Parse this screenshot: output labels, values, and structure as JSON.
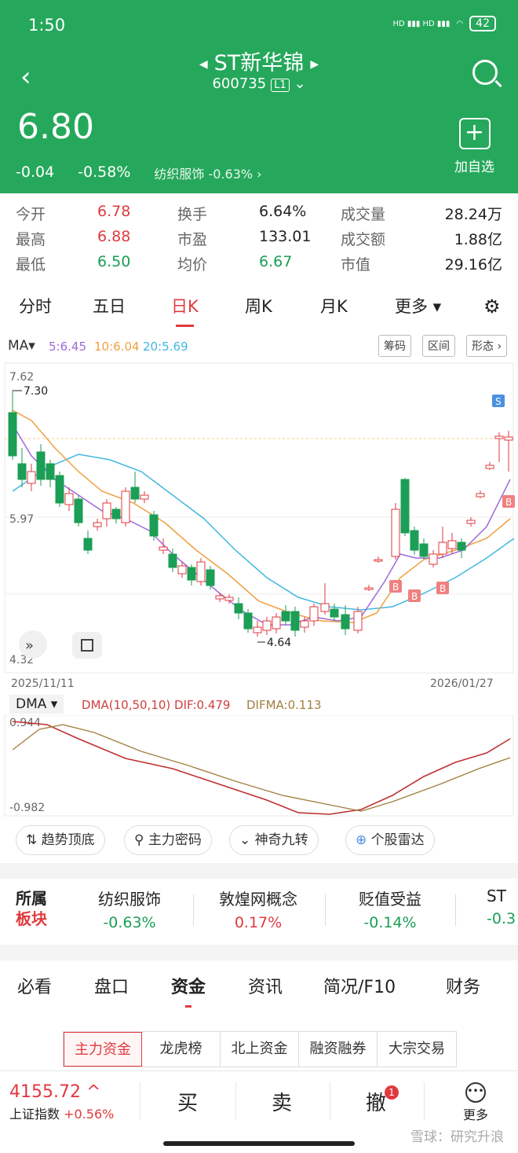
{
  "status_bar": {
    "time": "1:50",
    "network": "HD ▮▮▮ HD ▮▮▮",
    "battery": "42"
  },
  "header": {
    "stock_name": "ST新华锦",
    "stock_code": "600735",
    "level": "L1",
    "price": "6.80",
    "change": "-0.04",
    "change_pct": "-0.58%",
    "industry": "纺织服饰 -0.63% ›",
    "add_watch": "加自选"
  },
  "quote": {
    "rows": [
      [
        {
          "k": "今开",
          "v": "6.78"
        },
        {
          "k": "换手",
          "v": "6.64%"
        },
        {
          "k": "成交量",
          "v": "28.24万"
        }
      ],
      [
        {
          "k": "最高",
          "v": "6.88"
        },
        {
          "k": "市盈",
          "v": "133.01"
        },
        {
          "k": "成交额",
          "v": "1.88亿"
        }
      ],
      [
        {
          "k": "最低",
          "v": "6.50"
        },
        {
          "k": "均价",
          "v": "6.67"
        },
        {
          "k": "市值",
          "v": "29.16亿"
        }
      ]
    ]
  },
  "chart_tabs": [
    "分时",
    "五日",
    "日K",
    "周K",
    "月K",
    "更多 ▾"
  ],
  "indicator_bar": {
    "ma_label": "MA▾",
    "ma5": "5:6.45",
    "ma10": "10:6.04",
    "ma20": "20:5.69",
    "buttons": [
      "筹码",
      "区间",
      "形态 ›"
    ]
  },
  "kline": {
    "y_top": "7.62",
    "y_mid": "5.97",
    "y_bottom": "4.32",
    "high_label": "7.30",
    "low_label": "4.64",
    "date_start": "2025/11/11",
    "date_end": "2026/01/27",
    "sell_marker": "S",
    "buy_marker": "B"
  },
  "dma": {
    "label": "DMA ▾",
    "params": "DMA(10,50,10) DIF:0.479",
    "difma": "DIFMA:0.113",
    "y_top": "0.944",
    "y_bottom": "-0.982"
  },
  "tools": [
    "趋势顶底",
    "主力密码",
    "神奇九转",
    "个股雷达"
  ],
  "sector": {
    "label1": "所属",
    "label2": "板块",
    "items": [
      {
        "name": "纺织服饰",
        "pct": "-0.63%"
      },
      {
        "name": "敦煌网概念",
        "pct": "0.17%"
      },
      {
        "name": "贬值受益",
        "pct": "-0.14%"
      },
      {
        "name": "ST",
        "pct": "-0.3"
      }
    ]
  },
  "info_tabs": [
    "必看",
    "盘口",
    "资金",
    "资讯",
    "简况/F10",
    "财务"
  ],
  "fund_tabs": [
    "主力资金",
    "龙虎榜",
    "北上资金",
    "融资融券",
    "大宗交易"
  ],
  "bottom_bar": {
    "index_value": "4155.72 ^",
    "index_name": "上证指数",
    "index_chg": "+0.56%",
    "buy": "买",
    "sell": "卖",
    "cancel": "撤",
    "cancel_badge": "1",
    "more": "更多"
  },
  "watermark": "雪球：研究升浪",
  "colors": {
    "up": "#e03a3e",
    "down": "#1b9e55",
    "brand": "#25a85b",
    "ma5": "#a06ad8",
    "ma10": "#f0a040",
    "ma20": "#40b8e0"
  },
  "chart_data": {
    "type": "candlestick",
    "x_range": [
      "2025/11/11",
      "2026/01/27"
    ],
    "ylim": [
      4.32,
      7.62
    ],
    "annotations": [
      {
        "label": "7.30",
        "type": "high"
      },
      {
        "label": "4.64",
        "type": "low"
      }
    ]
  }
}
